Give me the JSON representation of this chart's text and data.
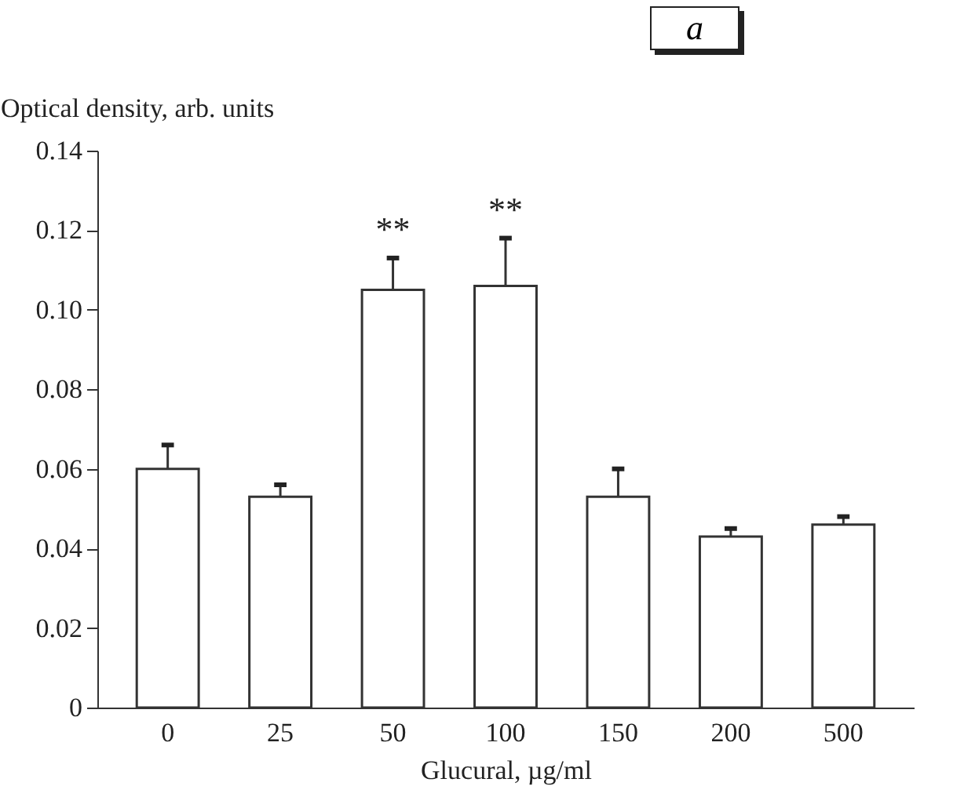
{
  "chart_data": {
    "type": "bar",
    "ylabel": "Optical density, arb. units",
    "xlabel": "Glucural, µg/ml",
    "categories": [
      "0",
      "25",
      "50",
      "100",
      "150",
      "200",
      "500"
    ],
    "values": [
      0.06,
      0.053,
      0.105,
      0.106,
      0.053,
      0.043,
      0.046
    ],
    "errors": [
      [
        0.06,
        0.066
      ],
      [
        0.053,
        0.056
      ],
      [
        0.105,
        0.113
      ],
      [
        0.106,
        0.118
      ],
      [
        0.053,
        0.06
      ],
      [
        0.043,
        0.045
      ],
      [
        0.046,
        0.048
      ]
    ],
    "color": "#ffffff",
    "ylim": [
      0,
      0.14
    ],
    "yticks": [
      "0",
      0.02,
      0.04,
      0.06,
      0.08,
      "0.10",
      0.12,
      0.14
    ],
    "annotations": [
      {
        "text": "**",
        "x": "50",
        "y": 0.113
      },
      {
        "text": "**",
        "x": "100",
        "y": 0.118
      },
      "a"
    ],
    "grid": false
  }
}
